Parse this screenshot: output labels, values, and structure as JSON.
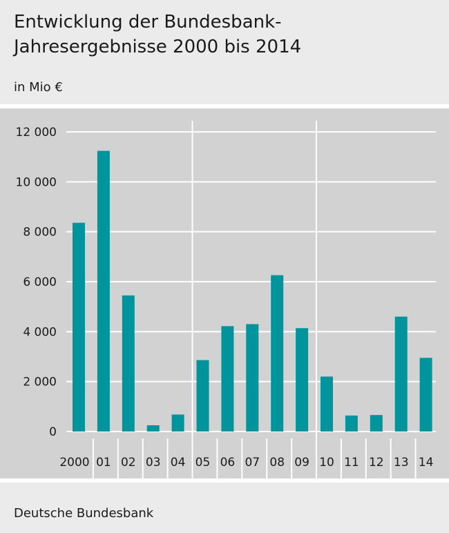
{
  "title": "Entwicklung der Bundesbank-Jahresergebnisse 2000 bis 2014",
  "unit": "in Mio €",
  "source": "Deutsche Bundesbank",
  "colors": {
    "bar": "#00949c",
    "background": "#d2d2d2",
    "grid": "#ffffff"
  },
  "chart_data": {
    "type": "bar",
    "categories": [
      "2000",
      "01",
      "02",
      "03",
      "04",
      "05",
      "06",
      "07",
      "08",
      "09",
      "10",
      "11",
      "12",
      "13",
      "14"
    ],
    "values": [
      8360,
      11240,
      5450,
      250,
      680,
      2860,
      4220,
      4300,
      6260,
      4140,
      2200,
      640,
      660,
      4600,
      2950
    ],
    "yticks": [
      "12 000",
      "10 000",
      "8 000",
      "6 000",
      "4 000",
      "2 000",
      "0"
    ],
    "ytick_values": [
      12000,
      10000,
      8000,
      6000,
      4000,
      2000,
      0
    ],
    "ylim": [
      0,
      12000
    ],
    "grid": true,
    "xlabel": "",
    "ylabel": ""
  }
}
